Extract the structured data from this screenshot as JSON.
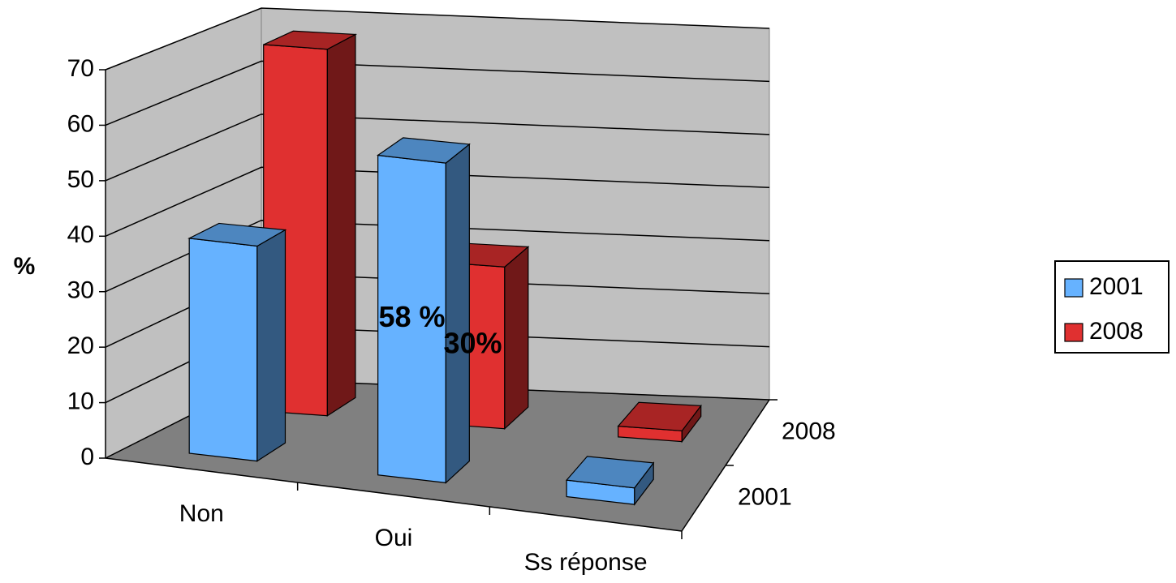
{
  "chart_data": {
    "type": "bar3d",
    "categories": [
      "Non",
      "Oui",
      "Ss réponse"
    ],
    "series": [
      {
        "name": "2001",
        "color": "#66b2ff",
        "values": [
          39,
          58,
          3
        ],
        "value_labels": [
          null,
          "58 %",
          null
        ]
      },
      {
        "name": "2008",
        "color": "#e03030",
        "values": [
          68,
          30,
          2
        ],
        "value_labels": [
          null,
          "30%",
          null
        ]
      }
    ],
    "ylabel": "%",
    "ylim": [
      0,
      70
    ],
    "yticks": [
      0,
      10,
      20,
      30,
      40,
      50,
      60,
      70
    ],
    "grid": true,
    "legend": "right"
  }
}
